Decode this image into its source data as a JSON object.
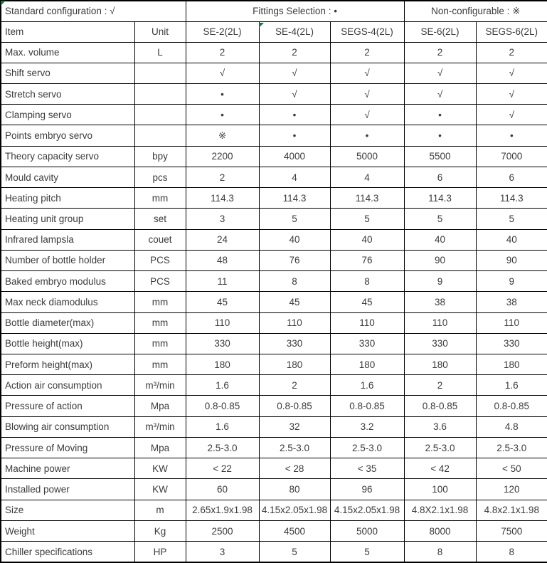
{
  "legend": {
    "standard": "Standard configuration : √",
    "fittings": "Fittings Selection : •",
    "non_configurable": "Non-configurable : ※"
  },
  "columns": [
    "Item",
    "Unit",
    "SE-2(2L)",
    "SE-4(2L)",
    "SEGS-4(2L)",
    "SE-6(2L)",
    "SEGS-6(2L)"
  ],
  "rows": [
    {
      "item": "Max. volume",
      "unit": "L",
      "values": [
        "2",
        "2",
        "2",
        "2",
        "2"
      ]
    },
    {
      "item": "Shift servo",
      "unit": "",
      "values": [
        "√",
        "√",
        "√",
        "√",
        "√"
      ]
    },
    {
      "item": "Stretch servo",
      "unit": "",
      "values": [
        "•",
        "√",
        "√",
        "√",
        "√"
      ]
    },
    {
      "item": "Clamping servo",
      "unit": "",
      "values": [
        "•",
        "•",
        "√",
        "•",
        "√"
      ]
    },
    {
      "item": "Points embryo servo",
      "unit": "",
      "values": [
        "※",
        "•",
        "•",
        "•",
        "•"
      ]
    },
    {
      "item": "Theory capacity servo",
      "unit": "bpy",
      "values": [
        "2200",
        "4000",
        "5000",
        "5500",
        "7000"
      ]
    },
    {
      "item": "Mould cavity",
      "unit": "pcs",
      "values": [
        "2",
        "4",
        "4",
        "6",
        "6"
      ]
    },
    {
      "item": "Heating pitch",
      "unit": "mm",
      "values": [
        "114.3",
        "114.3",
        "114.3",
        "114.3",
        "114.3"
      ]
    },
    {
      "item": "Heating unit group",
      "unit": "set",
      "values": [
        "3",
        "5",
        "5",
        "5",
        "5"
      ]
    },
    {
      "item": "Infrared lampsla",
      "unit": "couet",
      "values": [
        "24",
        "40",
        "40",
        "40",
        "40"
      ]
    },
    {
      "item": "Number of bottle holder",
      "unit": "PCS",
      "values": [
        "48",
        "76",
        "76",
        "90",
        "90"
      ]
    },
    {
      "item": "Baked embryo modulus",
      "unit": "PCS",
      "values": [
        "11",
        "8",
        "8",
        "9",
        "9"
      ]
    },
    {
      "item": "Max neck diamodulus",
      "unit": "mm",
      "values": [
        "45",
        "45",
        "45",
        "38",
        "38"
      ]
    },
    {
      "item": "Bottle diameter(max)",
      "unit": "mm",
      "values": [
        "110",
        "110",
        "110",
        "110",
        "110"
      ]
    },
    {
      "item": "Bottle height(max)",
      "unit": "mm",
      "values": [
        "330",
        "330",
        "330",
        "330",
        "330"
      ]
    },
    {
      "item": "Preform height(max)",
      "unit": "mm",
      "values": [
        "180",
        "180",
        "180",
        "180",
        "180"
      ]
    },
    {
      "item": "Action air consumption",
      "unit": "m³/min",
      "values": [
        "1.6",
        "2",
        "1.6",
        "2",
        "1.6"
      ]
    },
    {
      "item": "Pressure of action",
      "unit": "Mpa",
      "values": [
        "0.8-0.85",
        "0.8-0.85",
        "0.8-0.85",
        "0.8-0.85",
        "0.8-0.85"
      ]
    },
    {
      "item": "Blowing air consumption",
      "unit": "m³/min",
      "values": [
        "1.6",
        "32",
        "3.2",
        "3.6",
        "4.8"
      ]
    },
    {
      "item": "Pressure of Moving",
      "unit": "Mpa",
      "values": [
        "2.5-3.0",
        "2.5-3.0",
        "2.5-3.0",
        "2.5-3.0",
        "2.5-3.0"
      ]
    },
    {
      "item": "Machine power",
      "unit": "KW",
      "values": [
        "< 22",
        "< 28",
        "< 35",
        "< 42",
        "< 50"
      ]
    },
    {
      "item": "Installed power",
      "unit": "KW",
      "values": [
        "60",
        "80",
        "96",
        "100",
        "120"
      ]
    },
    {
      "item": "Size",
      "unit": "m",
      "values": [
        "2.65x1.9x1.98",
        "4.15x2.05x1.98",
        "4.15x2.05x1.98",
        "4.8X2.1x1.98",
        "4.8x2.1x1.98"
      ]
    },
    {
      "item": "Weight",
      "unit": "Kg",
      "values": [
        "2500",
        "4500",
        "5000",
        "8000",
        "7500"
      ]
    },
    {
      "item": "Chiller specifications",
      "unit": "HP",
      "values": [
        "3",
        "5",
        "5",
        "8",
        "8"
      ]
    }
  ],
  "markers": {
    "comment_marker_color": "#217346",
    "locations": [
      "table-top-left-corner",
      "se-4-header-cell"
    ]
  },
  "colors": {
    "border": "#000000",
    "text": "#3b3b3b",
    "background": "#ffffff"
  }
}
